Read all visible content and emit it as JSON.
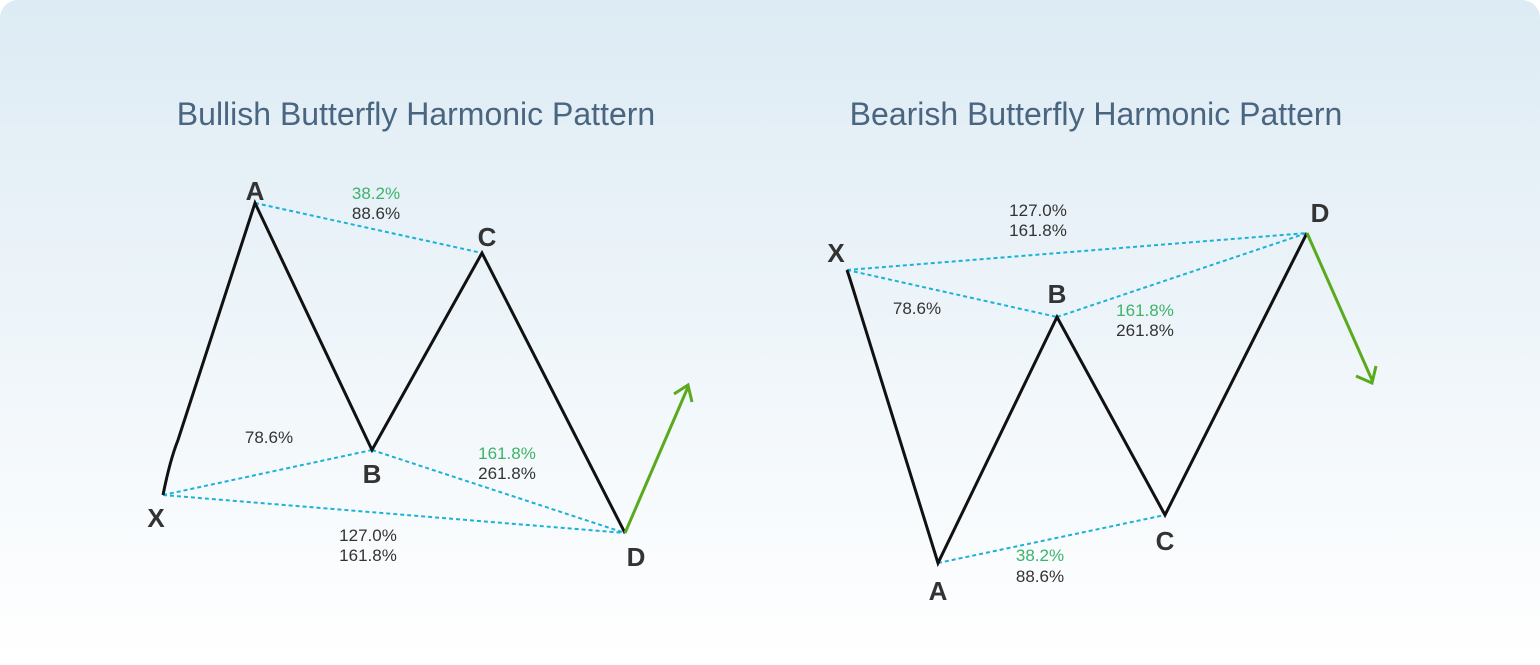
{
  "diagrams": [
    {
      "title": "Bullish Butterfly Harmonic Pattern",
      "points": {
        "X": "X",
        "A": "A",
        "B": "B",
        "C": "C",
        "D": "D"
      },
      "ratios": [
        [
          "38.2%",
          "88.6%"
        ],
        [
          "78.6%"
        ],
        [
          "161.8%",
          "261.8%"
        ],
        [
          "127.0%",
          "161.8%"
        ]
      ]
    },
    {
      "title": "Bearish Butterfly Harmonic Pattern",
      "points": {
        "X": "X",
        "A": "A",
        "B": "B",
        "C": "C",
        "D": "D"
      },
      "ratios": [
        [
          "127.0%",
          "161.8%"
        ],
        [
          "78.6%"
        ],
        [
          "161.8%",
          "261.8%"
        ],
        [
          "38.2%",
          "88.6%"
        ]
      ]
    }
  ]
}
